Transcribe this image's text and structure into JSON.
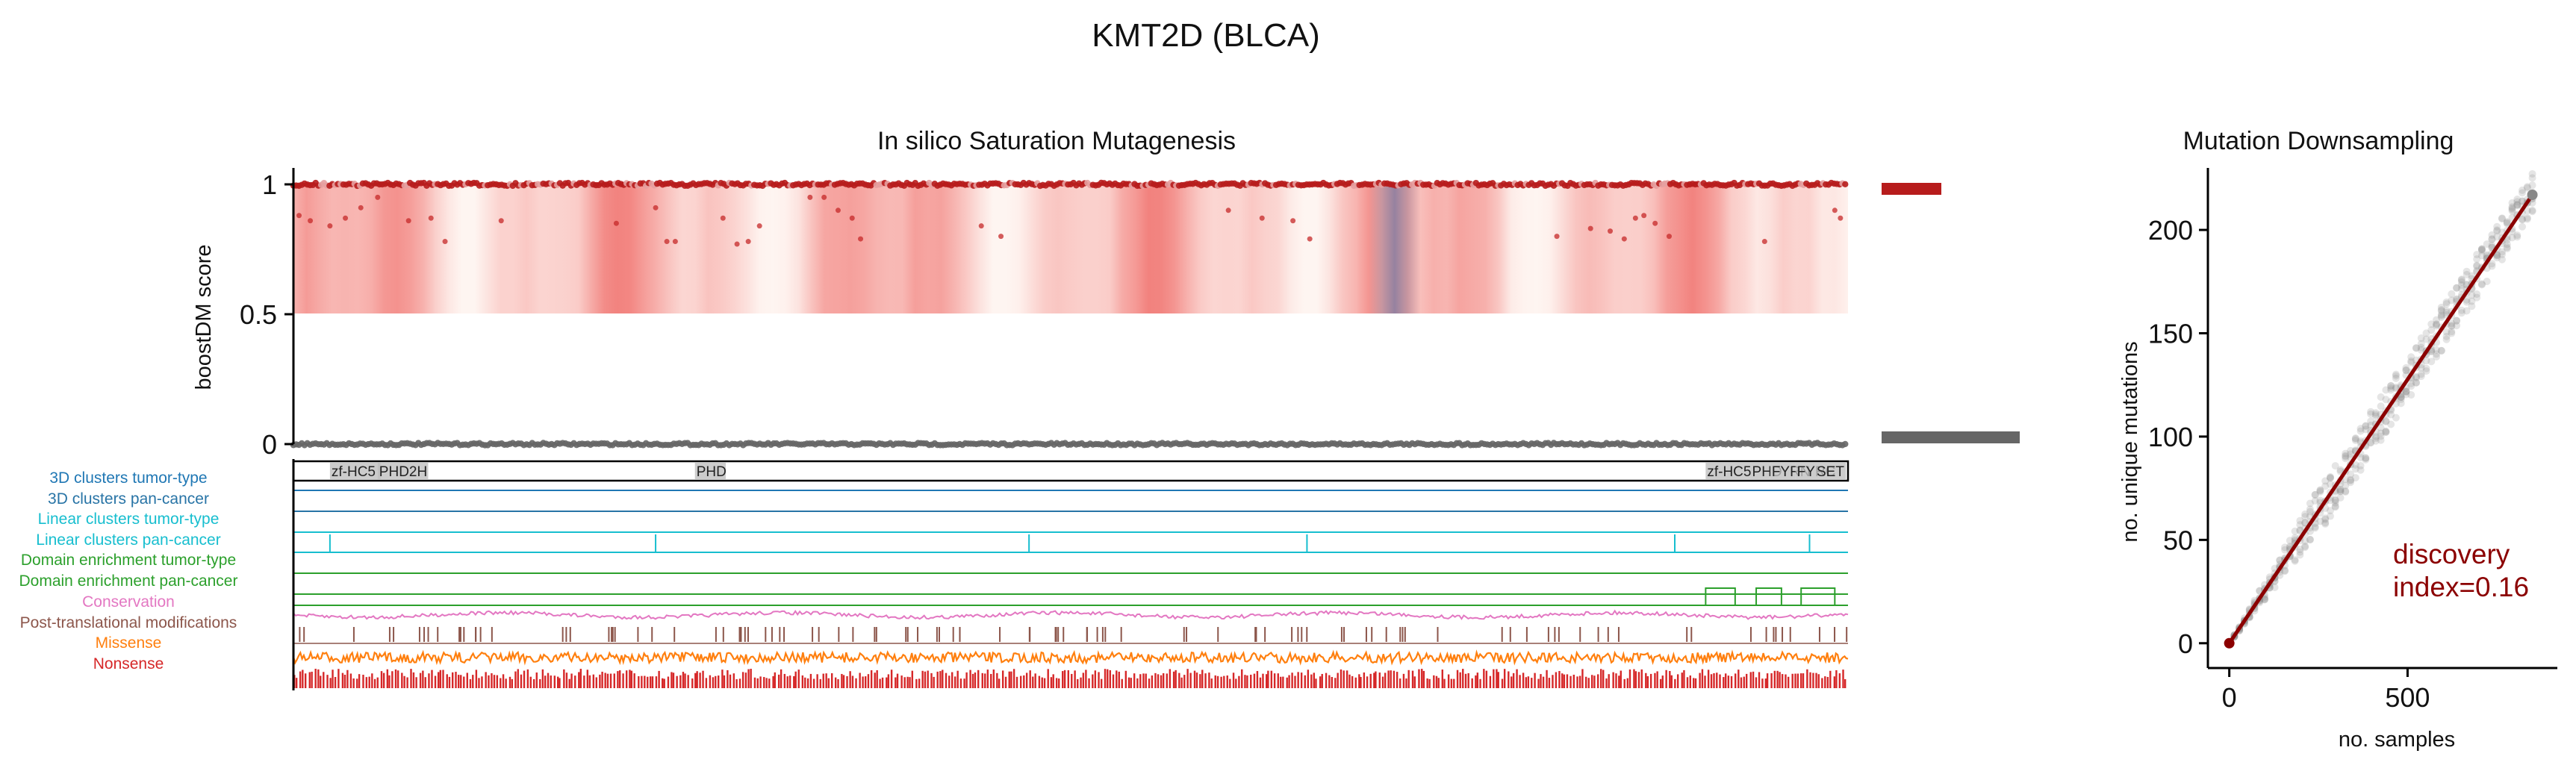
{
  "figure": {
    "suptitle": "KMT2D (BLCA)"
  },
  "chart_data": [
    {
      "type": "heatmap",
      "title": "In silico Saturation Mutagenesis",
      "ylabel": "boostDM score",
      "ylim": [
        0,
        1.05
      ],
      "yticks": [
        "0",
        "0.5",
        "1"
      ],
      "protein_length": 5537,
      "observed_mutation_positions": [
        20,
        60,
        130,
        185,
        240,
        300,
        410,
        490,
        540,
        740,
        1150,
        1290,
        1330,
        1360,
        1530,
        1580,
        1620,
        1660,
        1840,
        1890,
        1940,
        1990,
        2020,
        2450,
        2520,
        3330,
        3450,
        3560,
        3620,
        4500,
        4620,
        4690,
        4740,
        4780,
        4810,
        4850,
        4900,
        5240,
        5490,
        5510
      ],
      "observed_mutation_scores": [
        0.88,
        0.86,
        0.84,
        0.87,
        0.91,
        0.95,
        0.86,
        0.87,
        0.78,
        0.86,
        0.85,
        0.91,
        0.78,
        0.78,
        0.87,
        0.77,
        0.78,
        0.84,
        0.95,
        0.95,
        0.9,
        0.87,
        0.79,
        0.84,
        0.8,
        0.9,
        0.87,
        0.86,
        0.79,
        0.8,
        0.83,
        0.82,
        0.79,
        0.87,
        0.88,
        0.85,
        0.8,
        0.78,
        0.9,
        0.87
      ],
      "side_legend_colors": [
        "#b71c1c",
        "#666666"
      ]
    },
    {
      "type": "line",
      "title": "",
      "tracks": [
        {
          "name": "3D clusters tumor-type",
          "color": "#1f77b4",
          "segments": []
        },
        {
          "name": "3D clusters pan-cancer",
          "color": "#2874a6",
          "segments": []
        },
        {
          "name": "Linear clusters tumor-type",
          "color": "#17becf",
          "segments": []
        },
        {
          "name": "Linear clusters pan-cancer",
          "color": "#17becf",
          "peaks": [
            130,
            1290,
            2620,
            3610,
            4920,
            5400
          ]
        },
        {
          "name": "Domain enrichment tumor-type",
          "color": "#2ca02c",
          "segments": []
        },
        {
          "name": "Domain enrichment pan-cancer",
          "color": "#2ca02c",
          "segments": [
            [
              5030,
              5135
            ],
            [
              5210,
              5300
            ],
            [
              5370,
              5490
            ]
          ]
        },
        {
          "name": "Conservation",
          "color": "#e377c2"
        },
        {
          "name": "Post-translational modifications",
          "color": "#8c564b"
        },
        {
          "name": "Missense",
          "color": "#ff7f0e"
        },
        {
          "name": "Nonsense",
          "color": "#d62728"
        }
      ],
      "domains": [
        {
          "label": "zf-HC5",
          "start": 130,
          "end": 310
        },
        {
          "label": "PHD2H",
          "start": 300,
          "end": 480
        },
        {
          "label": "PHD",
          "start": 1430,
          "end": 1540
        },
        {
          "label": "zf-HC5",
          "start": 5030,
          "end": 5190
        },
        {
          "label": "PHD",
          "start": 5190,
          "end": 5260
        },
        {
          "label": "FYRN",
          "start": 5260,
          "end": 5350
        },
        {
          "label": "FYRC",
          "start": 5350,
          "end": 5420
        },
        {
          "label": "SET",
          "start": 5420,
          "end": 5530
        }
      ]
    },
    {
      "type": "scatter",
      "title": "Mutation Downsampling",
      "xlabel": "no. samples",
      "ylabel": "no. unique mutations",
      "xlim": [
        -60,
        920
      ],
      "ylim": [
        -12,
        230
      ],
      "xticks": [
        0,
        500
      ],
      "yticks": [
        0,
        50,
        100,
        150,
        200
      ],
      "n_samples_max": 850,
      "n_mutations_max": 217,
      "annotation": "discovery\nindex=0.16",
      "annotation_color": "#8b0000",
      "fit_color": "#8b0000"
    }
  ]
}
